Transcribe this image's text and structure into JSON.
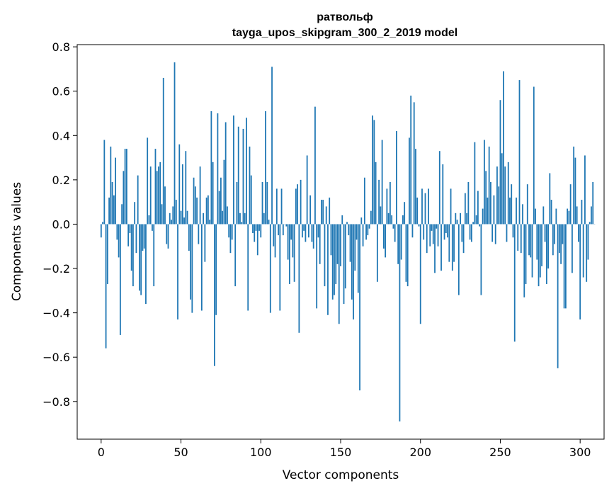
{
  "chart_data": {
    "type": "bar",
    "title": "ратвольф",
    "subtitle": "tayga_upos_skipgram_300_2_2019 model",
    "xlabel": "Vector components",
    "ylabel": "Components values",
    "xlim": [
      -15,
      315
    ],
    "ylim": [
      -0.97,
      0.81
    ],
    "xticks": [
      0,
      50,
      100,
      150,
      200,
      250,
      300
    ],
    "yticks": [
      0.8,
      0.6,
      0.4,
      0.2,
      0.0,
      -0.2,
      -0.4,
      -0.6,
      -0.8
    ],
    "xtick_labels": [
      "0",
      "50",
      "100",
      "150",
      "200",
      "250",
      "300"
    ],
    "ytick_labels": [
      "0.8",
      "0.6",
      "0.4",
      "0.2",
      "0.0",
      "−0.2",
      "−0.4",
      "−0.6",
      "−0.8"
    ],
    "color": "#1f77b4",
    "values": [
      -0.06,
      0.01,
      0.38,
      -0.56,
      -0.27,
      0.12,
      0.35,
      0.19,
      0.13,
      0.3,
      -0.07,
      -0.15,
      -0.5,
      0.09,
      0.24,
      0.34,
      0.34,
      -0.1,
      -0.04,
      -0.21,
      -0.28,
      0.1,
      -0.13,
      0.22,
      -0.3,
      -0.32,
      -0.12,
      -0.11,
      -0.36,
      0.39,
      0.04,
      0.26,
      -0.03,
      -0.28,
      0.34,
      0.24,
      0.26,
      0.28,
      0.09,
      0.66,
      0.17,
      -0.09,
      -0.11,
      0.05,
      0.02,
      0.08,
      0.73,
      0.11,
      -0.43,
      0.36,
      0.06,
      0.27,
      0.03,
      0.33,
      0.06,
      -0.12,
      -0.34,
      -0.4,
      0.21,
      0.17,
      0.12,
      -0.09,
      0.26,
      -0.39,
      0.05,
      -0.17,
      0.12,
      0.13,
      0.02,
      0.51,
      0.28,
      -0.64,
      -0.41,
      0.5,
      0.15,
      0.21,
      0.06,
      0.29,
      0.46,
      0.08,
      -0.06,
      -0.13,
      -0.07,
      0.49,
      -0.28,
      0.19,
      0.44,
      0.05,
      0.01,
      0.43,
      0.05,
      0.48,
      -0.39,
      0.35,
      0.22,
      -0.04,
      -0.08,
      -0.03,
      -0.14,
      -0.03,
      -0.06,
      0.19,
      0.05,
      0.51,
      0.19,
      0.02,
      -0.4,
      0.71,
      -0.1,
      -0.15,
      0.16,
      -0.05,
      -0.39,
      0.16,
      -0.05,
      0.0,
      -0.01,
      -0.16,
      -0.27,
      -0.07,
      -0.15,
      -0.26,
      0.16,
      0.18,
      -0.49,
      0.2,
      -0.06,
      -0.03,
      -0.08,
      0.31,
      -0.06,
      0.13,
      -0.08,
      -0.11,
      0.53,
      -0.38,
      -0.06,
      -0.18,
      0.11,
      0.11,
      -0.28,
      0.08,
      -0.41,
      0.12,
      -0.14,
      -0.34,
      -0.32,
      -0.27,
      -0.18,
      -0.45,
      -0.19,
      0.04,
      -0.36,
      -0.29,
      0.01,
      -0.05,
      -0.17,
      -0.34,
      -0.43,
      -0.21,
      -0.07,
      -0.31,
      -0.75,
      0.03,
      -0.1,
      0.21,
      -0.07,
      -0.05,
      -0.02,
      0.06,
      0.49,
      0.47,
      0.28,
      -0.26,
      0.2,
      0.08,
      0.38,
      -0.11,
      -0.15,
      0.16,
      0.05,
      0.19,
      0.04,
      -0.02,
      -0.08,
      0.42,
      -0.18,
      -0.89,
      -0.16,
      0.04,
      0.1,
      -0.26,
      -0.28,
      0.39,
      0.58,
      -0.06,
      0.55,
      0.34,
      0.12,
      -0.01,
      -0.45,
      0.16,
      -0.07,
      0.14,
      -0.13,
      0.16,
      -0.1,
      -0.03,
      -0.09,
      -0.22,
      -0.02,
      -0.1,
      0.33,
      -0.21,
      0.27,
      -0.07,
      -0.04,
      -0.06,
      -0.17,
      0.16,
      -0.21,
      -0.17,
      0.05,
      0.02,
      -0.32,
      0.05,
      -0.08,
      -0.13,
      0.14,
      0.05,
      0.19,
      -0.07,
      -0.08,
      0.01,
      0.37,
      0.04,
      0.15,
      -0.01,
      -0.32,
      0.07,
      0.38,
      0.24,
      0.12,
      0.35,
      0.19,
      -0.08,
      0.13,
      -0.09,
      0.26,
      0.17,
      0.56,
      0.32,
      0.69,
      0.26,
      -0.08,
      0.28,
      0.12,
      0.18,
      -0.06,
      -0.53,
      0.12,
      -0.12,
      0.65,
      -0.13,
      0.09,
      -0.33,
      -0.27,
      0.18,
      -0.14,
      -0.15,
      -0.24,
      0.62,
      0.07,
      -0.16,
      -0.28,
      -0.24,
      -0.19,
      0.08,
      -0.08,
      -0.27,
      -0.2,
      0.23,
      0.11,
      -0.14,
      -0.09,
      0.07,
      -0.65,
      -0.13,
      -0.18,
      -0.09,
      -0.38,
      -0.38,
      0.07,
      0.06,
      0.18,
      -0.22,
      0.35,
      0.3,
      0.08,
      -0.08,
      -0.43,
      0.11,
      -0.24,
      0.31,
      -0.26,
      -0.16,
      0.01,
      0.08,
      0.19,
      0.0
    ]
  }
}
